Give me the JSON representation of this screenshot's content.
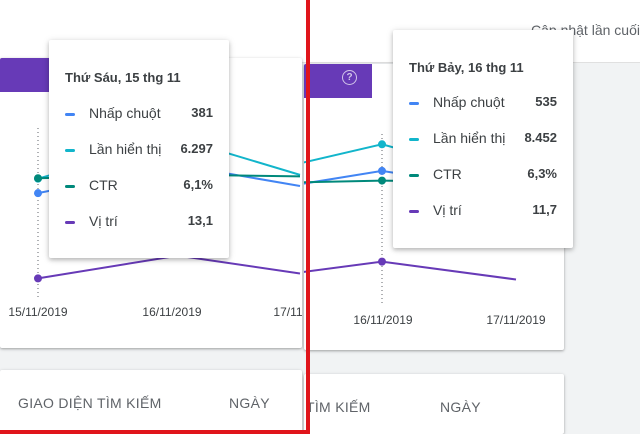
{
  "header": {
    "updated_text": "Cập nhật lần cuối"
  },
  "colors": {
    "clicks": "#4285f4",
    "impressions": "#12b5cb",
    "ctr": "#00897b",
    "position": "#673ab7",
    "highlight": "#e0151b"
  },
  "icons": {
    "help": "help-circle-icon"
  },
  "left_panel": {
    "tooltip": {
      "date": "Thứ Sáu, 15 thg 11",
      "rows": [
        {
          "label": "Nhấp chuột",
          "value": "381"
        },
        {
          "label": "Lần hiển thị",
          "value": "6.297"
        },
        {
          "label": "CTR",
          "value": "6,1%"
        },
        {
          "label": "Vị trí",
          "value": "13,1"
        }
      ]
    },
    "x_ticks": [
      "15/11/2019",
      "16/11/2019",
      "17/11"
    ],
    "tabs": [
      "GIAO DIỆN TÌM KIẾM",
      "NGÀY"
    ]
  },
  "right_panel": {
    "tooltip": {
      "date": "Thứ Bảy, 16 thg 11",
      "rows": [
        {
          "label": "Nhấp chuột",
          "value": "535"
        },
        {
          "label": "Lần hiển thị",
          "value": "8.452"
        },
        {
          "label": "CTR",
          "value": "6,3%"
        },
        {
          "label": "Vị trí",
          "value": "11,7"
        }
      ]
    },
    "x_ticks": [
      "16/11/2019",
      "17/11/2019"
    ],
    "tabs": [
      "TÌM KIẾM",
      "NGÀY"
    ]
  },
  "chart_data": {
    "type": "line",
    "x": [
      "15/11/2019",
      "16/11/2019",
      "17/11/2019"
    ],
    "series": [
      {
        "name": "Nhấp chuột",
        "values": [
          381,
          535,
          420
        ]
      },
      {
        "name": "Lần hiển thị",
        "values": [
          6297,
          8452,
          6500
        ]
      },
      {
        "name": "CTR",
        "values": [
          6.1,
          6.3,
          6.2
        ]
      },
      {
        "name": "Vị trí",
        "values": [
          13.1,
          11.7,
          12.8
        ]
      }
    ]
  }
}
